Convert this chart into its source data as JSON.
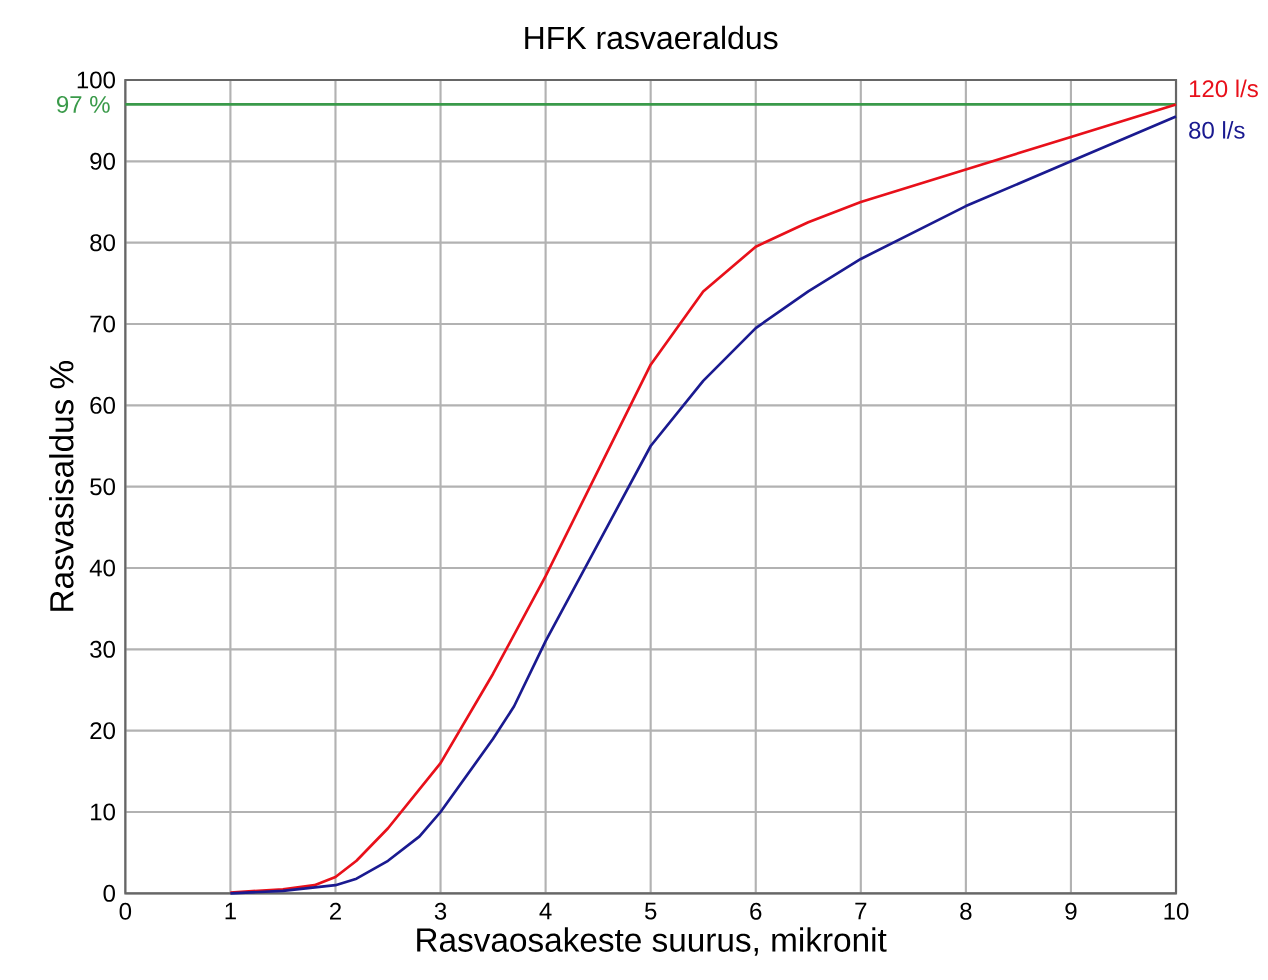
{
  "chart_data": {
    "type": "line",
    "title": "HFK rasvaeraldus",
    "xlabel": "Rasvaosakeste suurus, mikronit",
    "ylabel": "Rasvasisaldus %",
    "xlim": [
      0,
      10
    ],
    "ylim": [
      0,
      100
    ],
    "xticks": [
      0,
      1,
      2,
      3,
      4,
      5,
      6,
      7,
      8,
      9,
      10
    ],
    "yticks": [
      0,
      10,
      20,
      30,
      40,
      50,
      60,
      70,
      80,
      90,
      100
    ],
    "grid": true,
    "legend": false,
    "series": [
      {
        "name": "120 l/s",
        "color": "#e8101a",
        "x": [
          1,
          1.5,
          1.8,
          2,
          2.2,
          2.5,
          3,
          3.5,
          4,
          4.5,
          5,
          5.5,
          6,
          6.5,
          7,
          8,
          9,
          10
        ],
        "values": [
          0.1,
          0.5,
          1,
          2,
          4,
          8,
          16,
          27,
          39,
          52,
          65,
          74,
          79.5,
          82.5,
          85,
          89,
          93,
          97
        ]
      },
      {
        "name": "80 l/s",
        "color": "#1a1a90",
        "x": [
          1,
          1.5,
          2,
          2.2,
          2.5,
          2.8,
          3,
          3.5,
          3.7,
          4,
          4.5,
          5,
          5.5,
          6,
          6.5,
          7,
          8,
          9,
          10
        ],
        "values": [
          0,
          0.3,
          1,
          1.8,
          4,
          7,
          10,
          19,
          23,
          31,
          43,
          55,
          63,
          69.5,
          74,
          78,
          84.5,
          90,
          95.5
        ]
      }
    ],
    "ref_lines": [
      {
        "axis": "y",
        "value": 97,
        "label": "97 %",
        "color": "#3a9a4a"
      }
    ]
  }
}
